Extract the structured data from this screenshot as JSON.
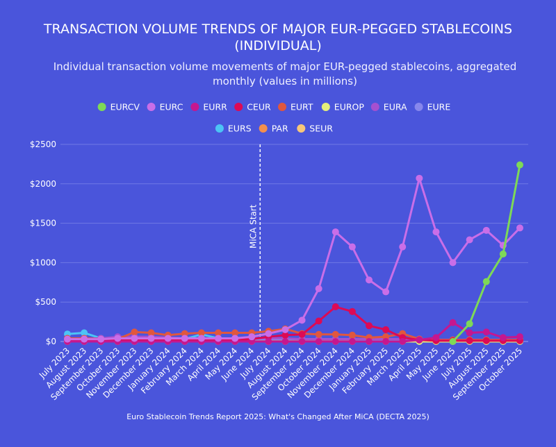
{
  "chart_data": {
    "type": "line",
    "title": "TRANSACTION VOLUME TRENDS OF MAJOR EUR-PEGGED STABLECOINS (INDIVIDUAL)",
    "subtitle": "Individual transaction volume movements of major EUR-pegged stablecoins, aggregated monthly (values in millions)",
    "source": "Euro Stablecoin Trends Report 2025: What's Changed After MiCA (DECTA 2025)",
    "xlabel": "",
    "ylabel": "",
    "ylim": [
      0,
      2500
    ],
    "yticks": [
      "$0",
      "$500",
      "$1000",
      "$1500",
      "$2000",
      "$2500"
    ],
    "grid": true,
    "legend_position": "top",
    "annotation": {
      "label": "MiCA Start",
      "x": "July 2024",
      "style": "dashed vertical line"
    },
    "categories": [
      "July 2023",
      "August 2023",
      "September 2023",
      "October 2023",
      "November 2023",
      "December 2023",
      "January 2024",
      "February 2024",
      "March 2024",
      "April 2024",
      "May 2024",
      "June 2024",
      "July 2024",
      "August 2024",
      "September 2024",
      "October 2024",
      "November 2024",
      "December 2024",
      "January 2025",
      "February 2025",
      "March 2025",
      "April 2025",
      "May 2025",
      "June 2025",
      "July 2025",
      "August 2025",
      "September 2025",
      "October 2025"
    ],
    "series": [
      {
        "name": "EURCV",
        "color": "#7ed957",
        "values": [
          null,
          null,
          null,
          null,
          null,
          null,
          null,
          null,
          null,
          null,
          null,
          null,
          null,
          null,
          null,
          null,
          null,
          null,
          null,
          null,
          null,
          null,
          null,
          0,
          225,
          760,
          1110,
          2240
        ]
      },
      {
        "name": "EURC",
        "color": "#c96ee8",
        "values": [
          30,
          30,
          30,
          40,
          40,
          40,
          40,
          40,
          40,
          40,
          40,
          60,
          100,
          150,
          270,
          670,
          1390,
          1200,
          780,
          630,
          1200,
          2070,
          1390,
          1000,
          1290,
          1410,
          1220,
          1440
        ]
      },
      {
        "name": "EURR",
        "color": "#c5178f",
        "values": [
          0,
          0,
          0,
          0,
          0,
          0,
          0,
          0,
          0,
          0,
          0,
          0,
          0,
          0,
          0,
          0,
          0,
          0,
          0,
          0,
          0,
          20,
          50,
          240,
          110,
          120,
          50,
          60
        ]
      },
      {
        "name": "CEUR",
        "color": "#dc0a55",
        "values": [
          20,
          20,
          20,
          20,
          20,
          20,
          20,
          20,
          20,
          20,
          20,
          30,
          60,
          80,
          90,
          260,
          440,
          380,
          200,
          150,
          50,
          20,
          10,
          10,
          10,
          10,
          10,
          10
        ]
      },
      {
        "name": "EURT",
        "color": "#e0573e",
        "values": [
          40,
          40,
          30,
          30,
          120,
          110,
          80,
          100,
          110,
          110,
          110,
          110,
          130,
          160,
          100,
          90,
          90,
          80,
          50,
          60,
          100,
          30,
          20,
          20,
          20,
          20,
          20,
          20
        ]
      },
      {
        "name": "EUROP",
        "color": "#e5ee7a",
        "values": [
          0,
          0,
          0,
          0,
          0,
          0,
          0,
          0,
          0,
          0,
          0,
          0,
          0,
          0,
          0,
          0,
          0,
          0,
          0,
          0,
          0,
          0,
          0,
          0,
          0,
          0,
          0,
          0
        ]
      },
      {
        "name": "EURA",
        "color": "#a550d0",
        "values": [
          40,
          40,
          40,
          60,
          60,
          60,
          50,
          40,
          40,
          40,
          40,
          40,
          40,
          40,
          30,
          30,
          30,
          30,
          30,
          30,
          30,
          30,
          20,
          20,
          20,
          20,
          20,
          20
        ]
      },
      {
        "name": "EURE",
        "color": "#8787ec",
        "values": [
          30,
          30,
          30,
          30,
          30,
          30,
          30,
          30,
          30,
          30,
          30,
          30,
          30,
          30,
          30,
          30,
          30,
          30,
          30,
          30,
          30,
          30,
          20,
          20,
          20,
          20,
          20,
          20
        ]
      },
      {
        "name": "EURS",
        "color": "#4cc4f5",
        "values": [
          95,
          110,
          40,
          30,
          30,
          40,
          40,
          30,
          90,
          40,
          30,
          30,
          30,
          30,
          30,
          30,
          30,
          30,
          20,
          10,
          10,
          10,
          10,
          10,
          10,
          10,
          10,
          10
        ]
      },
      {
        "name": "PAR",
        "color": "#f48f4c",
        "values": [
          15,
          15,
          15,
          15,
          15,
          15,
          15,
          15,
          15,
          15,
          15,
          15,
          15,
          15,
          15,
          15,
          15,
          15,
          15,
          15,
          15,
          15,
          15,
          15,
          15,
          15,
          15,
          15
        ]
      },
      {
        "name": "SEUR",
        "color": "#f7c77a",
        "values": [
          5,
          5,
          5,
          5,
          5,
          5,
          5,
          5,
          5,
          5,
          5,
          5,
          5,
          5,
          5,
          5,
          5,
          5,
          5,
          5,
          5,
          5,
          5,
          5,
          5,
          5,
          5,
          5
        ]
      }
    ]
  }
}
